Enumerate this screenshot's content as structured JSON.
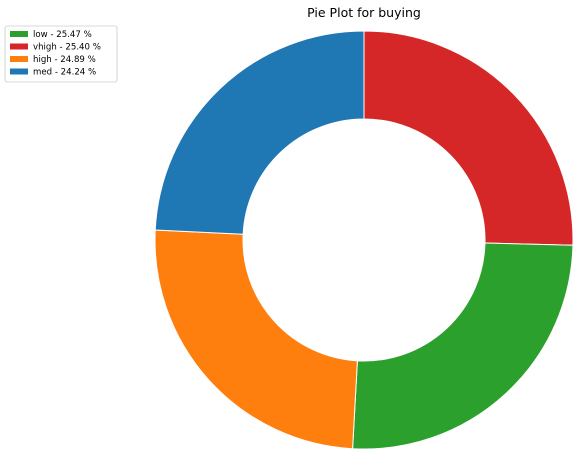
{
  "chart_data": {
    "type": "pie",
    "title": "Pie Plot for buying",
    "donut": true,
    "legend_position": "top-left",
    "start_angle_deg": 90,
    "direction": "clockwise",
    "slices": [
      {
        "label": "vhigh",
        "legend_label": "vhigh - 25.40 %",
        "value": 25.4,
        "color": "#d62728"
      },
      {
        "label": "low",
        "legend_label": "low - 25.47 %",
        "value": 25.47,
        "color": "#2ca02c"
      },
      {
        "label": "high",
        "legend_label": "high - 24.89 %",
        "value": 24.89,
        "color": "#ff7f0e"
      },
      {
        "label": "med",
        "legend_label": "med - 24.24 %",
        "value": 24.24,
        "color": "#1f77b4"
      }
    ],
    "legend_order": [
      "low",
      "vhigh",
      "high",
      "med"
    ]
  }
}
